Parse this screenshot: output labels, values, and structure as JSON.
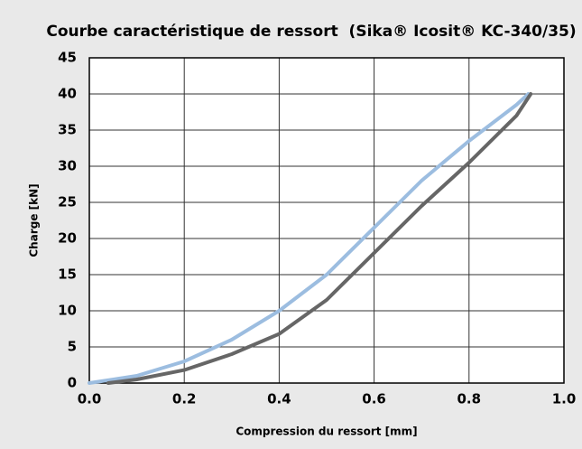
{
  "chart_data": {
    "type": "line",
    "title": "Courbe caractéristique de ressort  (Sika® Icosit® KC-340/35)",
    "xlabel": "Compression du ressort [mm]",
    "ylabel": "Charge [kN]",
    "xlim": [
      0,
      1
    ],
    "ylim": [
      0,
      45
    ],
    "xticks": [
      {
        "value": 0,
        "label": "0.0"
      },
      0.2,
      0.4,
      0.6,
      0.8,
      {
        "value": 1,
        "label": "1.0"
      }
    ],
    "yticks": [
      0,
      5,
      10,
      15,
      20,
      25,
      30,
      35,
      40,
      45
    ],
    "grid": true,
    "series": [
      {
        "color": "#9cbde0",
        "x": [
          0,
          0.1,
          0.2,
          0.3,
          0.4,
          0.5,
          0.6,
          0.7,
          0.8,
          0.9,
          0.925
        ],
        "values": [
          0,
          1,
          3,
          6,
          10,
          15,
          21.5,
          28,
          33.5,
          38.5,
          40
        ]
      },
      {
        "color": "#666666",
        "x": [
          0.04,
          0.1,
          0.2,
          0.3,
          0.4,
          0.5,
          0.6,
          0.7,
          0.8,
          0.9,
          0.93
        ],
        "values": [
          0,
          0.5,
          1.8,
          4,
          6.8,
          11.5,
          18,
          24.5,
          30.5,
          37,
          40
        ]
      }
    ]
  }
}
